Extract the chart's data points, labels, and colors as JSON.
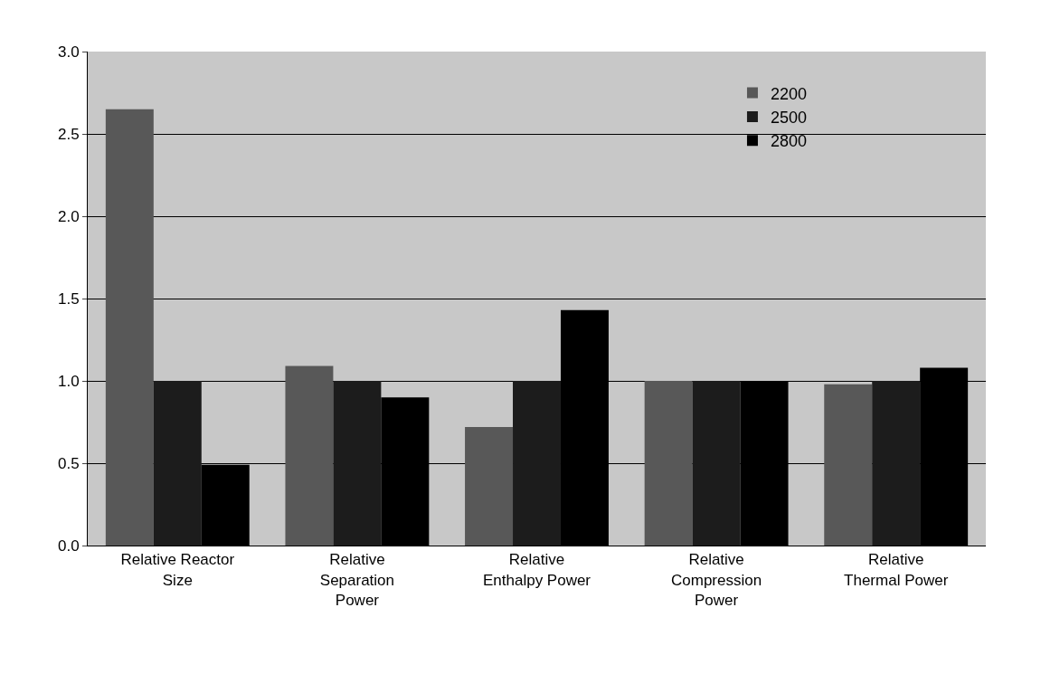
{
  "chart_data": {
    "type": "bar",
    "categories": [
      "Relative Reactor\nSize",
      "Relative\nSeparation\nPower",
      "Relative\nEnthalpy Power",
      "Relative\nCompression\nPower",
      "Relative\nThermal Power"
    ],
    "series": [
      {
        "name": "2200",
        "color": "#585858",
        "values": [
          2.65,
          1.09,
          0.72,
          1.0,
          0.98
        ]
      },
      {
        "name": "2500",
        "color": "#1c1c1c",
        "values": [
          1.0,
          1.0,
          1.0,
          1.0,
          1.0
        ]
      },
      {
        "name": "2800",
        "color": "#000000",
        "values": [
          0.49,
          0.9,
          1.43,
          1.0,
          1.08
        ]
      }
    ],
    "ylim": [
      0,
      3.0
    ],
    "yticks": [
      {
        "value": 0,
        "label": "0.0"
      },
      {
        "value": 0.5,
        "label": "0.5"
      },
      {
        "value": 1,
        "label": "1.0"
      },
      {
        "value": 1.5,
        "label": "1.5"
      },
      {
        "value": 2,
        "label": "2.0"
      },
      {
        "value": 2.5,
        "label": "2.5"
      },
      {
        "value": 3,
        "label": "3.0"
      }
    ],
    "grid": "y",
    "legend": "top right"
  }
}
